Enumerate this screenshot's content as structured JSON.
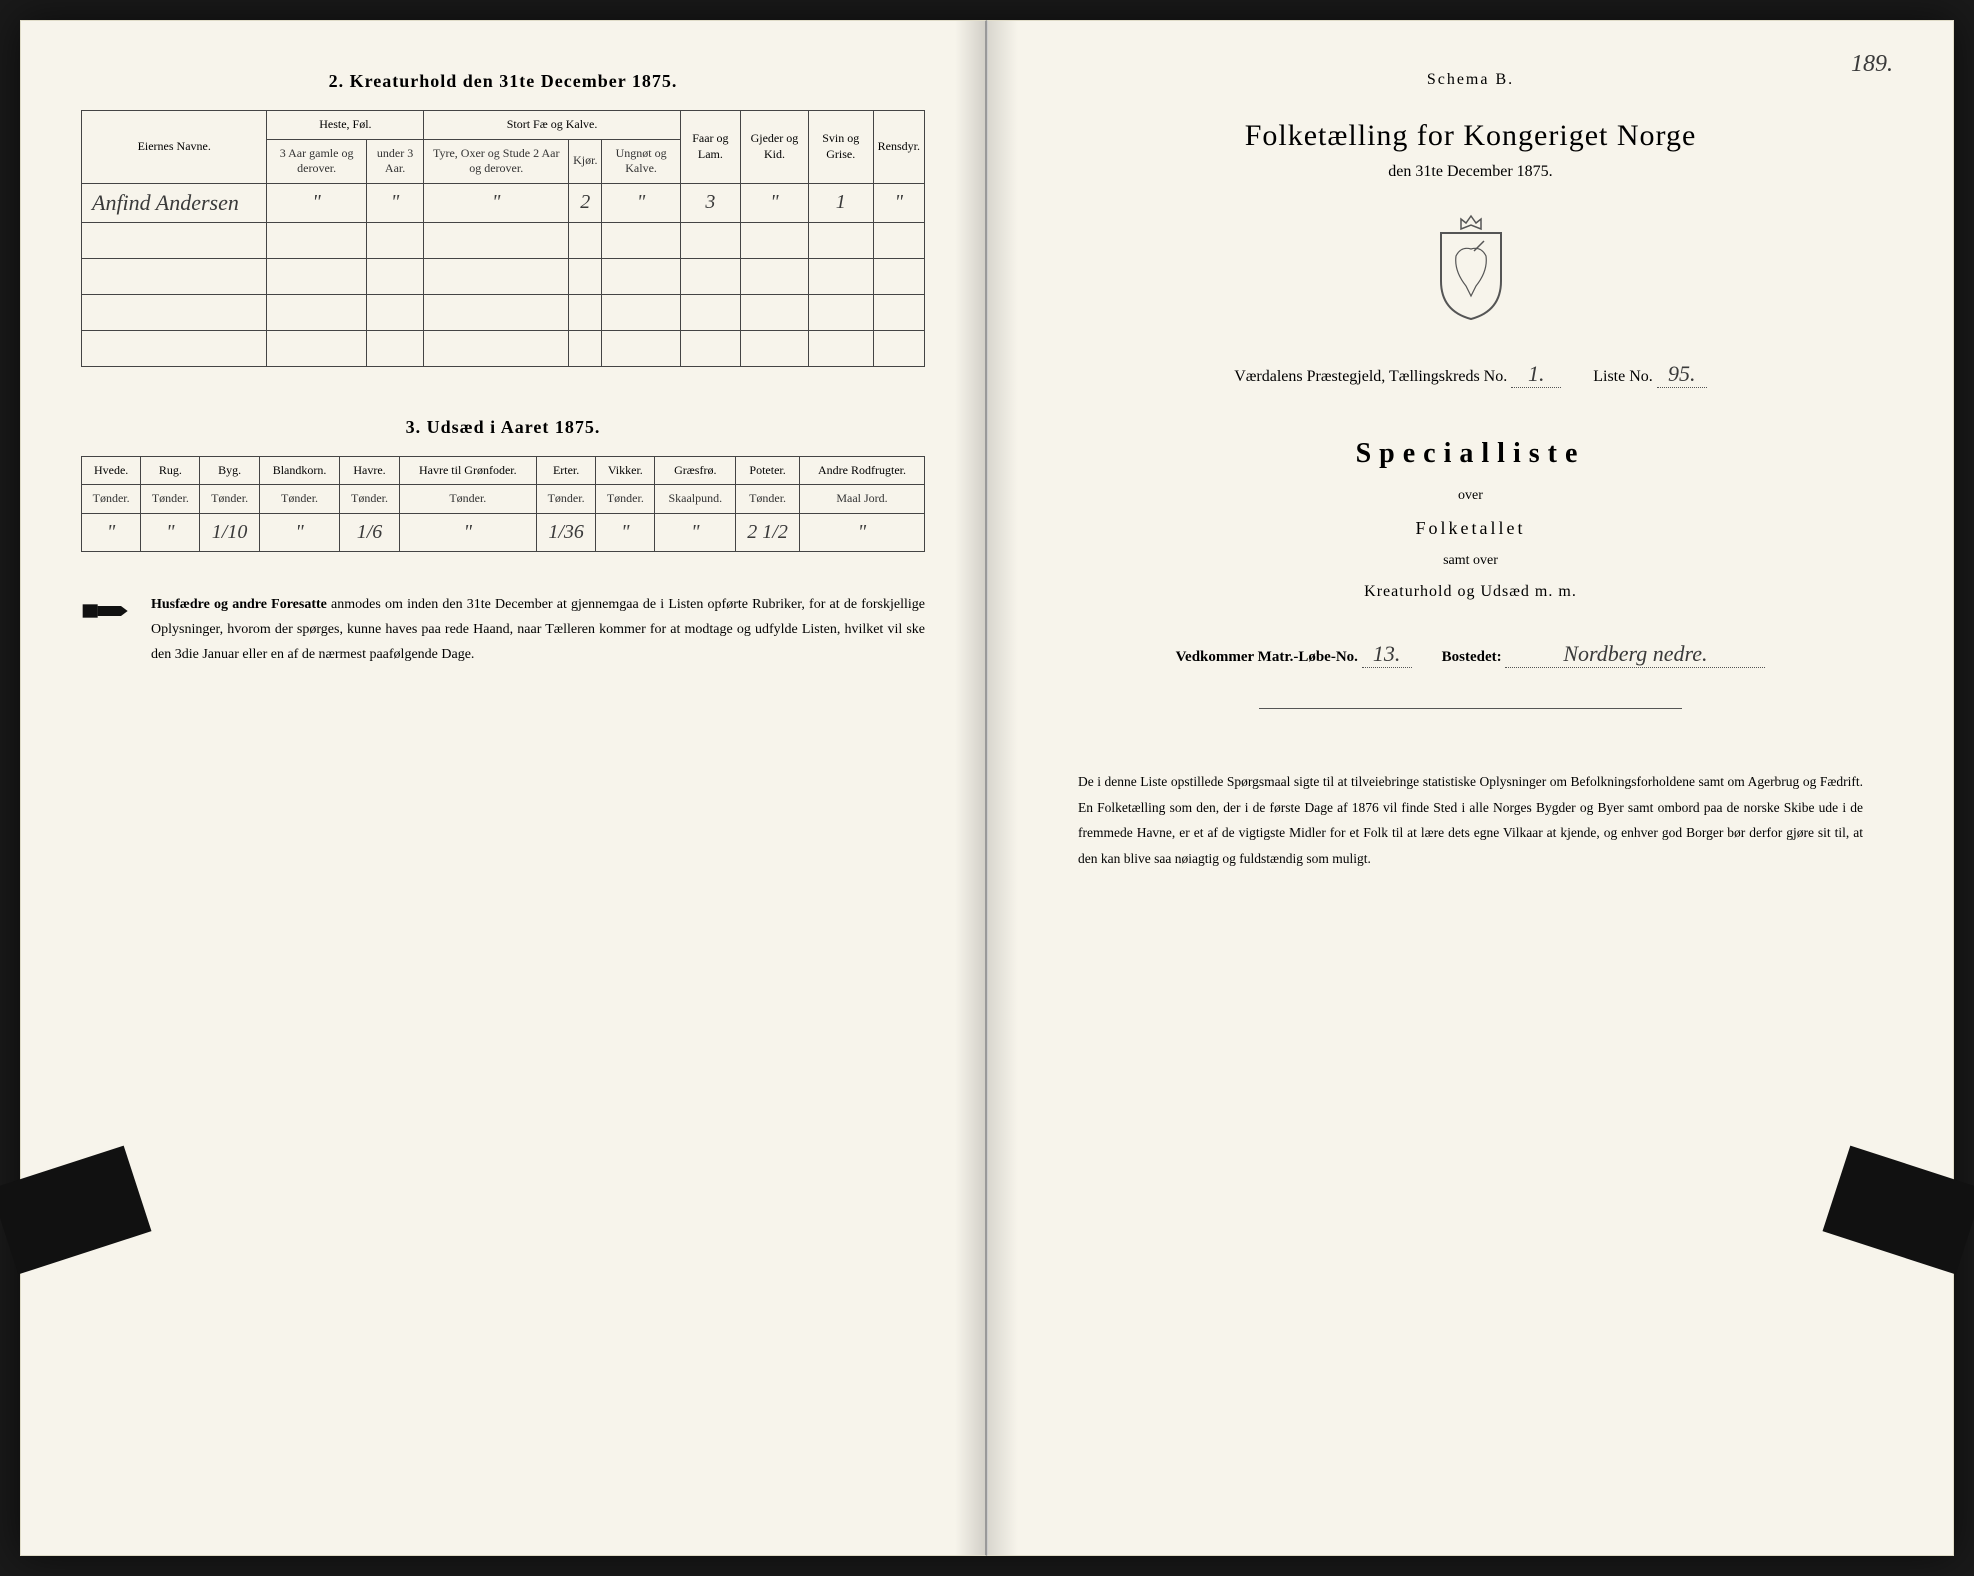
{
  "left": {
    "section2_title": "2.  Kreaturhold den 31te December 1875.",
    "table2": {
      "col_owner": "Eiernes Navne.",
      "group_horses": "Heste, Føl.",
      "group_cattle": "Stort Fæ og Kalve.",
      "col_horses_old": "3 Aar gamle og derover.",
      "col_horses_young": "under 3 Aar.",
      "col_cattle_bull": "Tyre, Oxer og Stude 2 Aar og derover.",
      "col_cattle_cow": "Kjør.",
      "col_cattle_calf": "Ungnøt og Kalve.",
      "col_sheep": "Faar og Lam.",
      "col_goat": "Gjeder og Kid.",
      "col_pig": "Svin og Grise.",
      "col_rein": "Rensdyr.",
      "row": {
        "owner": "Anfind Andersen",
        "horses_old": "\"",
        "horses_young": "\"",
        "cattle_bull": "\"",
        "cattle_cow": "2",
        "cattle_calf": "\"",
        "sheep": "3",
        "goat": "\"",
        "pig": "1",
        "rein": "\""
      }
    },
    "section3_title": "3.  Udsæd i Aaret 1875.",
    "table3": {
      "cols": [
        "Hvede.",
        "Rug.",
        "Byg.",
        "Blandkorn.",
        "Havre.",
        "Havre til Grønfoder.",
        "Erter.",
        "Vikker.",
        "Græsfrø.",
        "Poteter.",
        "Andre Rodfrugter."
      ],
      "units": [
        "Tønder.",
        "Tønder.",
        "Tønder.",
        "Tønder.",
        "Tønder.",
        "Tønder.",
        "Tønder.",
        "Tønder.",
        "Skaalpund.",
        "Tønder.",
        "Maal Jord."
      ],
      "row": [
        "\"",
        "\"",
        "1/10",
        "\"",
        "1/6",
        "\"",
        "1/36",
        "\"",
        "\"",
        "2 1/2",
        "\""
      ]
    },
    "footnote_bold": "Husfædre og andre Foresatte",
    "footnote_rest": " anmodes om inden den 31te December at gjennemgaa de i Listen opførte Rubriker, for at de forskjellige Oplysninger, hvorom der spørges, kunne haves paa rede Haand, naar Tælleren kommer for at modtage og udfylde Listen, hvilket vil ske den 3die Januar eller en af de nærmest paafølgende Dage."
  },
  "right": {
    "pagenum": "189.",
    "schema": "Schema B.",
    "title": "Folketælling for Kongeriget Norge",
    "subtitle": "den 31te December 1875.",
    "parish_label": "Værdalens Præstegjeld,  Tællingskreds No.",
    "parish_no": "1.",
    "liste_label": "Liste No.",
    "liste_no": "95.",
    "special": "Specialliste",
    "over": "over",
    "folketallet": "Folketallet",
    "samt": "samt over",
    "kreatur": "Kreaturhold og Udsæd m. m.",
    "matr_label": "Vedkommer Matr.-Løbe-No.",
    "matr_no": "13.",
    "bosted_label": "Bostedet:",
    "bosted_val": "Nordberg nedre.",
    "footnote": "De i denne Liste opstillede Spørgsmaal sigte til at tilveiebringe statistiske Oplysninger om Befolkningsforholdene samt om Agerbrug og Fædrift.  En Folketælling som den, der i de første Dage af 1876 vil finde Sted i alle Norges Bygder og Byer samt ombord paa de norske Skibe ude i de fremmede Havne, er et af de vigtigste Midler for et Folk til at lære dets egne Vilkaar at kjende, og enhver god Borger bør derfor gjøre sit til, at den kan blive saa nøiagtig og fuldstændig som muligt."
  },
  "colors": {
    "paper": "#f7f4eb",
    "ink": "#2a2a2a",
    "border": "#444444"
  }
}
